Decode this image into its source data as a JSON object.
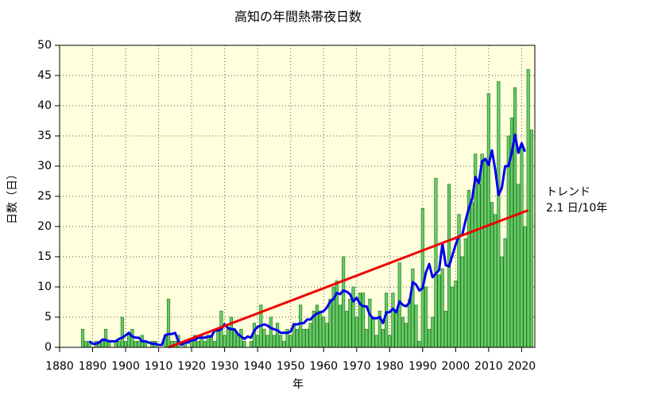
{
  "chart_data": {
    "type": "bar",
    "title": "高知の年間熱帯夜日数",
    "x_label": "年",
    "y_label": "日数（日）",
    "annotations": [
      "トレンド",
      "2.1 日/10年"
    ],
    "x": [
      1887,
      1888,
      1889,
      1890,
      1891,
      1892,
      1893,
      1894,
      1895,
      1896,
      1897,
      1898,
      1899,
      1900,
      1901,
      1902,
      1903,
      1904,
      1905,
      1906,
      1907,
      1908,
      1909,
      1910,
      1911,
      1912,
      1913,
      1914,
      1915,
      1916,
      1917,
      1918,
      1919,
      1920,
      1921,
      1922,
      1923,
      1924,
      1925,
      1926,
      1927,
      1928,
      1929,
      1930,
      1931,
      1932,
      1933,
      1934,
      1935,
      1936,
      1937,
      1938,
      1939,
      1940,
      1941,
      1942,
      1943,
      1944,
      1945,
      1946,
      1947,
      1948,
      1949,
      1950,
      1951,
      1952,
      1953,
      1954,
      1955,
      1956,
      1957,
      1958,
      1959,
      1960,
      1961,
      1962,
      1963,
      1964,
      1965,
      1966,
      1967,
      1968,
      1969,
      1970,
      1971,
      1972,
      1973,
      1974,
      1975,
      1976,
      1977,
      1978,
      1979,
      1980,
      1981,
      1982,
      1983,
      1984,
      1985,
      1986,
      1987,
      1988,
      1989,
      1990,
      1991,
      1992,
      1993,
      1994,
      1995,
      1996,
      1997,
      1998,
      1999,
      2000,
      2001,
      2002,
      2003,
      2004,
      2005,
      2006,
      2007,
      2008,
      2009,
      2010,
      2011,
      2012,
      2013,
      2014,
      2015,
      2016,
      2017,
      2018,
      2019,
      2020,
      2021,
      2022,
      2023
    ],
    "series": [
      {
        "type": "bar",
        "color": "#66cc66",
        "values": [
          3,
          1,
          1,
          0,
          1,
          1,
          1,
          3,
          1,
          0,
          1,
          1,
          5,
          1,
          2,
          3,
          1,
          1,
          2,
          1,
          0,
          1,
          1,
          0,
          0,
          2,
          8,
          1,
          1,
          2,
          0,
          1,
          0,
          1,
          2,
          1,
          2,
          1,
          2,
          2,
          1,
          3,
          6,
          2,
          3,
          5,
          3,
          2,
          3,
          1,
          0,
          1,
          4,
          2,
          7,
          3,
          2,
          5,
          2,
          4,
          2,
          1,
          3,
          2,
          4,
          3,
          7,
          3,
          3,
          4,
          6,
          7,
          6,
          5,
          4,
          8,
          10,
          11,
          7,
          15,
          6,
          8,
          10,
          5,
          9,
          9,
          3,
          8,
          5,
          2,
          6,
          3,
          9,
          2,
          9,
          6,
          14,
          5,
          4,
          8,
          13,
          7,
          1,
          23,
          10,
          3,
          5,
          28,
          12,
          13,
          6,
          27,
          10,
          11,
          22,
          15,
          18,
          26,
          24,
          32,
          27,
          32,
          31,
          42,
          24,
          22,
          44,
          15,
          18,
          35,
          38,
          43,
          27,
          33,
          20,
          46,
          36
        ]
      },
      {
        "type": "line",
        "color": "#0000ee",
        "values": [
          null,
          null,
          1.0,
          0.6,
          0.6,
          0.8,
          1.3,
          1.2,
          1.0,
          1.0,
          1.0,
          1.4,
          1.6,
          2.0,
          2.4,
          1.8,
          1.6,
          1.6,
          1.0,
          1.0,
          0.8,
          0.6,
          0.6,
          0.4,
          0.4,
          2.0,
          2.2,
          2.2,
          2.4,
          1.0,
          0.4,
          0.8,
          0.8,
          1.2,
          1.2,
          1.6,
          1.6,
          1.6,
          1.8,
          1.8,
          2.8,
          2.8,
          3.0,
          3.8,
          3.2,
          3.0,
          3.0,
          2.2,
          1.8,
          1.4,
          1.8,
          1.6,
          2.8,
          3.4,
          3.6,
          3.8,
          3.6,
          3.2,
          3.0,
          2.8,
          2.4,
          2.4,
          2.4,
          2.6,
          3.8,
          3.8,
          4.0,
          4.0,
          4.6,
          4.6,
          5.2,
          5.6,
          5.8,
          6.0,
          6.6,
          7.6,
          8.0,
          9.0,
          8.8,
          9.4,
          9.2,
          8.8,
          7.6,
          8.2,
          7.2,
          6.8,
          6.8,
          5.4,
          4.8,
          4.8,
          5.0,
          4.0,
          5.8,
          5.8,
          6.4,
          5.8,
          7.6,
          7.0,
          6.8,
          7.4,
          10.8,
          10.4,
          9.4,
          9.8,
          12.4,
          13.8,
          11.6,
          12.2,
          12.8,
          17.2,
          13.6,
          13.4,
          15.2,
          17.0,
          18.4,
          18.6,
          21.0,
          23.0,
          24.6,
          28.2,
          27.2,
          30.8,
          31.2,
          30.2,
          32.6,
          29.4,
          25.2,
          26.4,
          30.0,
          30.0,
          32.2,
          35.2,
          32.2,
          33.8,
          32.4,
          null,
          null
        ]
      }
    ],
    "trend": {
      "color": "#ee0000",
      "x": [
        1913,
        2022
      ],
      "values": [
        0,
        22.7
      ]
    },
    "xlim": [
      1880,
      2024
    ],
    "xticks": [
      1880,
      1890,
      1900,
      1910,
      1920,
      1930,
      1940,
      1950,
      1960,
      1970,
      1980,
      1990,
      2000,
      2010,
      2020
    ],
    "ylim": [
      0,
      50
    ],
    "yticks": [
      0,
      5,
      10,
      15,
      20,
      25,
      30,
      35,
      40,
      45,
      50
    ],
    "grid": true,
    "background": "#ffffdd"
  }
}
